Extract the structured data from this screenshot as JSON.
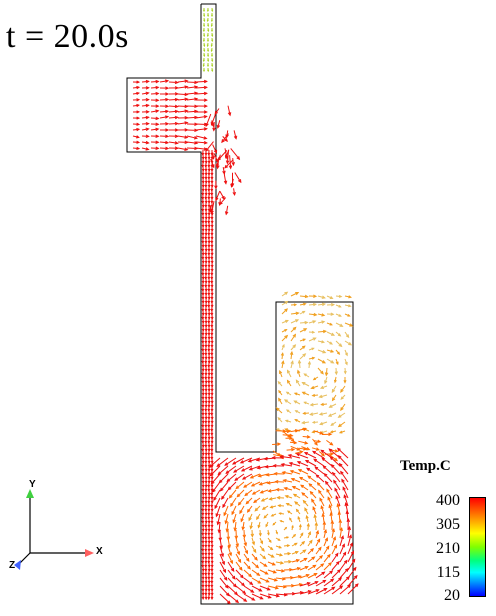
{
  "time_label": "t = 20.0s",
  "legend": {
    "title": "Temp.C",
    "ticks": [
      "400",
      "305",
      "210",
      "115",
      "20"
    ],
    "colors": {
      "hot": "#ff0000",
      "mid_hot": "#ff8000",
      "warm": "#ffff00",
      "mid": "#00ff80",
      "cool": "#00ffff",
      "cold": "#0000ff"
    }
  },
  "axes_triad": {
    "x": "X",
    "y": "Y",
    "z": "Z",
    "colors": {
      "x": "#ff6060",
      "y": "#40d040",
      "z": "#4060ff"
    }
  },
  "vector_field_colors": {
    "primary": "#ee1010",
    "secondary": "#ff6a00",
    "tertiary": "#f0a020",
    "pale": "#e8c060",
    "green_tint": "#a8d020"
  }
}
